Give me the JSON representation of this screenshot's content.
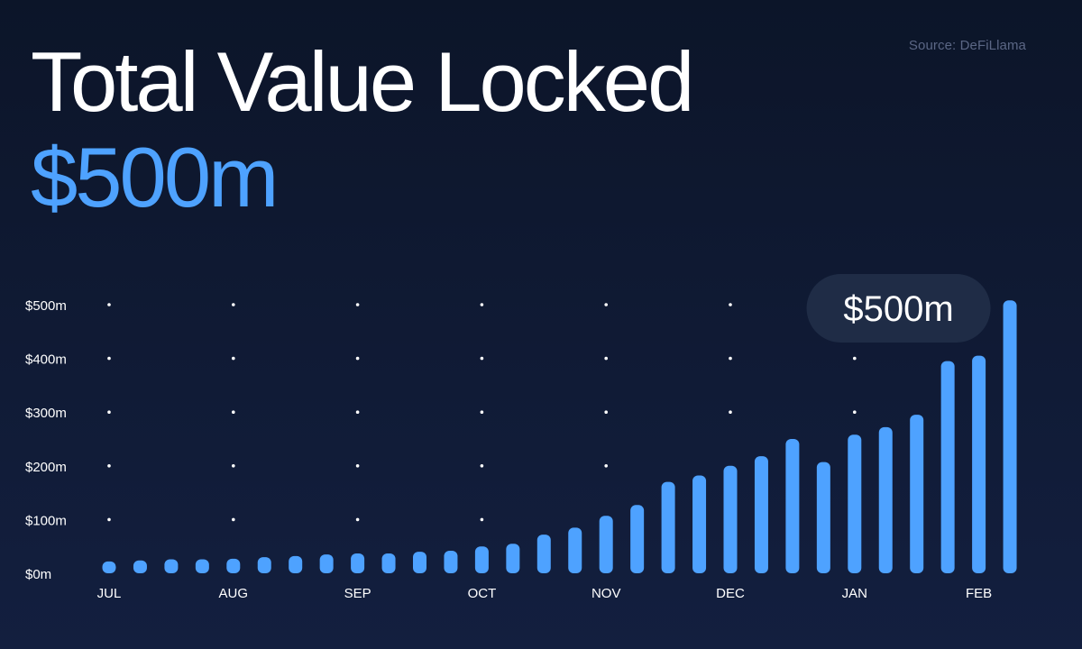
{
  "source": "Source: DeFiLlama",
  "title": "Total Value Locked",
  "headline_value": "$500m",
  "colors": {
    "background": "#0f1a34",
    "bar": "#4ea2ff",
    "title": "#ffffff",
    "accent": "#4ea2ff",
    "callout_bg": "#1f2c46"
  },
  "chart_data": {
    "type": "bar",
    "title": "Total Value Locked",
    "xlabel": "",
    "ylabel": "",
    "y_unit": "$m",
    "ylim": [
      0,
      500
    ],
    "y_ticks": [
      0,
      100,
      200,
      300,
      400,
      500
    ],
    "y_tick_labels": [
      "$0m",
      "$100m",
      "$200m",
      "$300m",
      "$400m",
      "$500m"
    ],
    "x_tick_labels": [
      "JUL",
      "AUG",
      "SEP",
      "OCT",
      "NOV",
      "DEC",
      "JAN",
      "FEB"
    ],
    "x_tick_bar_index": [
      0,
      4,
      8,
      12,
      16,
      20,
      24,
      28
    ],
    "grid": "dotted",
    "values": [
      22,
      24,
      26,
      26,
      27,
      30,
      32,
      35,
      37,
      37,
      40,
      42,
      50,
      55,
      72,
      85,
      107,
      127,
      170,
      182,
      200,
      218,
      250,
      207,
      258,
      272,
      295,
      395,
      405,
      508
    ],
    "annotation": {
      "bar_index": 29,
      "label": "$500m"
    }
  }
}
